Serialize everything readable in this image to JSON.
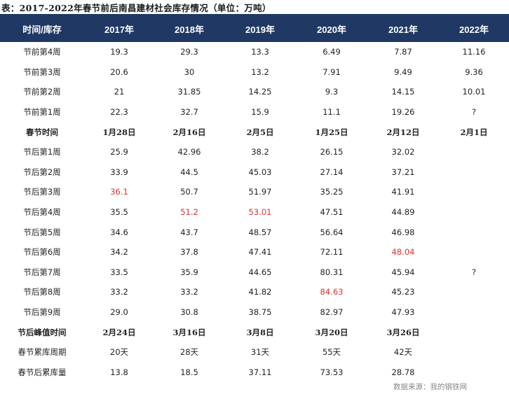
{
  "title": "表：2017-2022年春节前后南昌建材社会库存情况（单位：万吨）",
  "colors": {
    "header_bg": "#1f3864",
    "header_text": "#ffffff",
    "highlight": "#e03030"
  },
  "headers": [
    "时间/库存",
    "2017年",
    "2018年",
    "2019年",
    "2020年",
    "2021年",
    "2022年"
  ],
  "rows": [
    [
      "节前第4周",
      "19.3",
      "29.3",
      "13.3",
      "6.49",
      "7.87",
      "11.16"
    ],
    [
      "节前第3周",
      "20.6",
      "30",
      "13.2",
      "7.91",
      "9.49",
      "9.36"
    ],
    [
      "节前第2周",
      "21",
      "31.85",
      "14.25",
      "9.3",
      "14.15",
      "10.01"
    ],
    [
      "节前第1周",
      "22.3",
      "32.7",
      "15.9",
      "11.1",
      "19.26",
      "?"
    ],
    [
      "春节时间",
      "1月28日",
      "2月16日",
      "2月5日",
      "1月25日",
      "2月12日",
      "2月1日"
    ],
    [
      "节后第1周",
      "25.9",
      "42.96",
      "38.2",
      "26.15",
      "32.02",
      ""
    ],
    [
      "节后第2周",
      "33.9",
      "44.5",
      "45.03",
      "27.14",
      "37.21",
      ""
    ],
    [
      "节后第3周",
      "36.1",
      "50.7",
      "51.97",
      "35.25",
      "41.91",
      ""
    ],
    [
      "节后第4周",
      "35.5",
      "51.2",
      "53.01",
      "47.51",
      "44.89",
      ""
    ],
    [
      "节后第5周",
      "34.6",
      "43.7",
      "48.57",
      "56.64",
      "46.98",
      ""
    ],
    [
      "节后第6周",
      "34.2",
      "37.8",
      "47.41",
      "72.11",
      "48.04",
      ""
    ],
    [
      "节后第7周",
      "33.5",
      "35.9",
      "44.65",
      "80.31",
      "45.94",
      "?"
    ],
    [
      "节后第8周",
      "33.2",
      "33.2",
      "41.82",
      "84.63",
      "45.23",
      ""
    ],
    [
      "节后第9周",
      "29.0",
      "30.8",
      "38.75",
      "82.97",
      "47.93",
      ""
    ],
    [
      "节后峰值时间",
      "2月24日",
      "3月16日",
      "3月8日",
      "3月20日",
      "3月26日",
      ""
    ],
    [
      "春节累库周期",
      "20天",
      "28天",
      "31天",
      "55天",
      "42天",
      ""
    ],
    [
      "春节后累库量",
      "13.8",
      "18.5",
      "37.11",
      "73.53",
      "28.78",
      ""
    ]
  ],
  "bold_rows": [
    4,
    14
  ],
  "red_cells": [
    [
      7,
      1
    ],
    [
      8,
      2
    ],
    [
      8,
      3
    ],
    [
      12,
      4
    ],
    [
      10,
      5
    ]
  ],
  "source": "数据来源：我的钢铁网"
}
